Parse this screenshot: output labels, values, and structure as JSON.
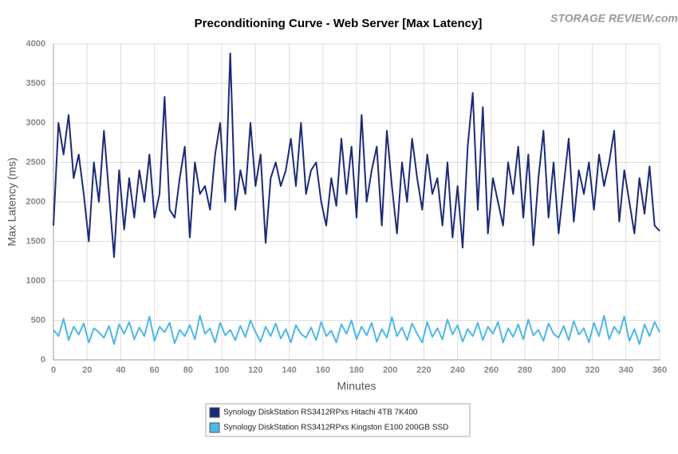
{
  "chart_data": {
    "type": "line",
    "title": "Preconditioning Curve - Web Server [Max Latency]",
    "logo": "STORAGE REVIEW.com",
    "xlabel": "Minutes",
    "ylabel": "Max Latency (ms)",
    "xlim": [
      0,
      360
    ],
    "ylim": [
      0,
      4000
    ],
    "xticks": [
      0,
      20,
      40,
      60,
      80,
      100,
      120,
      140,
      160,
      180,
      200,
      220,
      240,
      260,
      280,
      300,
      320,
      340,
      360
    ],
    "yticks": [
      0,
      500,
      1000,
      1500,
      2000,
      2500,
      3000,
      3500,
      4000
    ],
    "grid": true,
    "legend": "bottom",
    "x": [
      0,
      3,
      6,
      9,
      12,
      15,
      18,
      21,
      24,
      27,
      30,
      33,
      36,
      39,
      42,
      45,
      48,
      51,
      54,
      57,
      60,
      63,
      66,
      69,
      72,
      75,
      78,
      81,
      84,
      87,
      90,
      93,
      96,
      99,
      102,
      105,
      108,
      111,
      114,
      117,
      120,
      123,
      126,
      129,
      132,
      135,
      138,
      141,
      144,
      147,
      150,
      153,
      156,
      159,
      162,
      165,
      168,
      171,
      174,
      177,
      180,
      183,
      186,
      189,
      192,
      195,
      198,
      201,
      204,
      207,
      210,
      213,
      216,
      219,
      222,
      225,
      228,
      231,
      234,
      237,
      240,
      243,
      246,
      249,
      252,
      255,
      258,
      261,
      264,
      267,
      270,
      273,
      276,
      279,
      282,
      285,
      288,
      291,
      294,
      297,
      300,
      303,
      306,
      309,
      312,
      315,
      318,
      321,
      324,
      327,
      330,
      333,
      336,
      339,
      342,
      345,
      348,
      351,
      354,
      357,
      360
    ],
    "series": [
      {
        "name": "Synology DiskStation RS3412RPxs Hitachi 4TB 7K400",
        "color": "#1b2a78",
        "values": [
          1700,
          3000,
          2600,
          3100,
          2300,
          2600,
          2100,
          1500,
          2500,
          2000,
          2900,
          2100,
          1300,
          2400,
          1650,
          2300,
          1800,
          2400,
          2000,
          2600,
          1800,
          2100,
          3330,
          1900,
          1800,
          2300,
          2700,
          1550,
          2500,
          2100,
          2200,
          1900,
          2600,
          3000,
          2000,
          3880,
          1900,
          2400,
          2100,
          3000,
          2200,
          2600,
          1480,
          2300,
          2500,
          2200,
          2400,
          2800,
          2200,
          3000,
          2100,
          2400,
          2500,
          2000,
          1700,
          2300,
          1950,
          2800,
          2100,
          2700,
          1800,
          3100,
          2000,
          2400,
          2700,
          1700,
          2900,
          2200,
          1600,
          2500,
          2000,
          2800,
          2300,
          1900,
          2600,
          2100,
          2300,
          1700,
          2500,
          1550,
          2200,
          1420,
          2700,
          3380,
          1900,
          3200,
          1600,
          2300,
          2000,
          1700,
          2500,
          2100,
          2700,
          1800,
          2600,
          1450,
          2300,
          2900,
          1800,
          2500,
          1600,
          2200,
          2800,
          1750,
          2400,
          2100,
          2500,
          1900,
          2600,
          2200,
          2500,
          2900,
          1750,
          2400,
          2000,
          1600,
          2300,
          1850,
          2450,
          1700,
          1630
        ]
      },
      {
        "name": "Synology DiskStation RS3412RPxs Kingston E100 200GB SSD",
        "color": "#4db8e8",
        "values": [
          380,
          300,
          520,
          250,
          420,
          320,
          460,
          220,
          400,
          350,
          280,
          430,
          200,
          450,
          330,
          480,
          260,
          410,
          300,
          550,
          240,
          420,
          350,
          470,
          210,
          380,
          300,
          440,
          260,
          560,
          330,
          400,
          220,
          470,
          310,
          380,
          250,
          430,
          290,
          500,
          350,
          230,
          420,
          300,
          460,
          270,
          390,
          220,
          440,
          330,
          280,
          410,
          250,
          480,
          300,
          370,
          220,
          450,
          330,
          500,
          260,
          420,
          310,
          470,
          230,
          390,
          280,
          540,
          300,
          410,
          250,
          460,
          330,
          220,
          480,
          290,
          400,
          260,
          510,
          320,
          440,
          230,
          390,
          300,
          470,
          250,
          420,
          330,
          480,
          220,
          400,
          290,
          450,
          260,
          510,
          310,
          380,
          240,
          460,
          330,
          280,
          430,
          250,
          490,
          320,
          400,
          220,
          470,
          300,
          560,
          260,
          420,
          330,
          550,
          240,
          390,
          200,
          450,
          300,
          480,
          350
        ]
      }
    ]
  }
}
